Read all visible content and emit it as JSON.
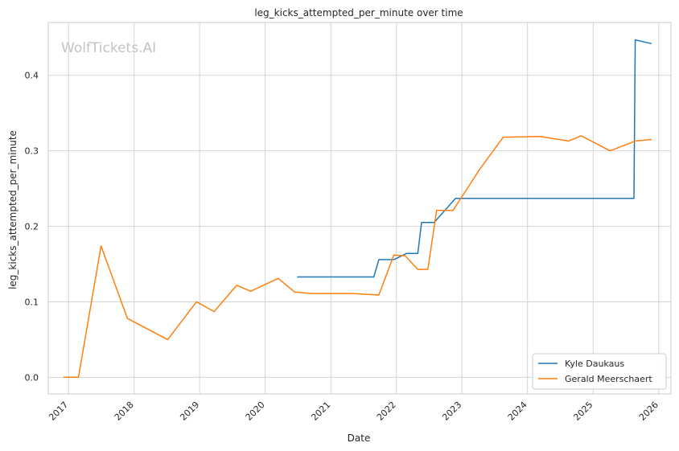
{
  "watermark": "WolfTickets.AI",
  "chart_data": {
    "type": "line",
    "title": "leg_kicks_attempted_per_minute over time",
    "xlabel": "Date",
    "ylabel": "leg_kicks_attempted_per_minute",
    "xlim": [
      "2016-09-10",
      "2026-03-10"
    ],
    "ylim": [
      -0.022,
      0.47
    ],
    "x_ticks": [
      "2017",
      "2018",
      "2019",
      "2020",
      "2021",
      "2022",
      "2023",
      "2024",
      "2025",
      "2026"
    ],
    "y_ticks": [
      "0.0",
      "0.1",
      "0.2",
      "0.3",
      "0.4"
    ],
    "grid": true,
    "legend_position": "lower-right",
    "series": [
      {
        "name": "Kyle Daukaus",
        "color": "#1f77b4",
        "points": [
          [
            "2020-06-27",
            0.133
          ],
          [
            "2021-08-28",
            0.133
          ],
          [
            "2021-09-25",
            0.156
          ],
          [
            "2021-12-18",
            0.156
          ],
          [
            "2022-02-26",
            0.164
          ],
          [
            "2022-04-30",
            0.164
          ],
          [
            "2022-05-21",
            0.205
          ],
          [
            "2022-07-30",
            0.205
          ],
          [
            "2022-11-26",
            0.237
          ],
          [
            "2025-08-16",
            0.237
          ],
          [
            "2025-08-23",
            0.447
          ],
          [
            "2025-11-22",
            0.442
          ]
        ]
      },
      {
        "name": "Gerald Meerschaert",
        "color": "#ff7f0e",
        "points": [
          [
            "2016-12-03",
            0.0
          ],
          [
            "2017-02-25",
            0.0
          ],
          [
            "2017-07-01",
            0.174
          ],
          [
            "2017-11-25",
            0.078
          ],
          [
            "2018-07-07",
            0.05
          ],
          [
            "2018-12-15",
            0.1
          ],
          [
            "2019-03-23",
            0.087
          ],
          [
            "2019-07-27",
            0.122
          ],
          [
            "2019-10-12",
            0.114
          ],
          [
            "2020-03-14",
            0.131
          ],
          [
            "2020-06-13",
            0.113
          ],
          [
            "2020-09-19",
            0.111
          ],
          [
            "2021-05-01",
            0.111
          ],
          [
            "2021-09-25",
            0.109
          ],
          [
            "2021-12-18",
            0.162
          ],
          [
            "2022-02-19",
            0.161
          ],
          [
            "2022-04-30",
            0.143
          ],
          [
            "2022-06-25",
            0.143
          ],
          [
            "2022-08-13",
            0.221
          ],
          [
            "2022-11-12",
            0.221
          ],
          [
            "2023-04-08",
            0.275
          ],
          [
            "2023-08-19",
            0.318
          ],
          [
            "2024-03-09",
            0.319
          ],
          [
            "2024-08-17",
            0.313
          ],
          [
            "2024-10-26",
            0.32
          ],
          [
            "2025-04-05",
            0.3
          ],
          [
            "2025-08-23",
            0.313
          ],
          [
            "2025-11-22",
            0.315
          ]
        ]
      }
    ]
  }
}
